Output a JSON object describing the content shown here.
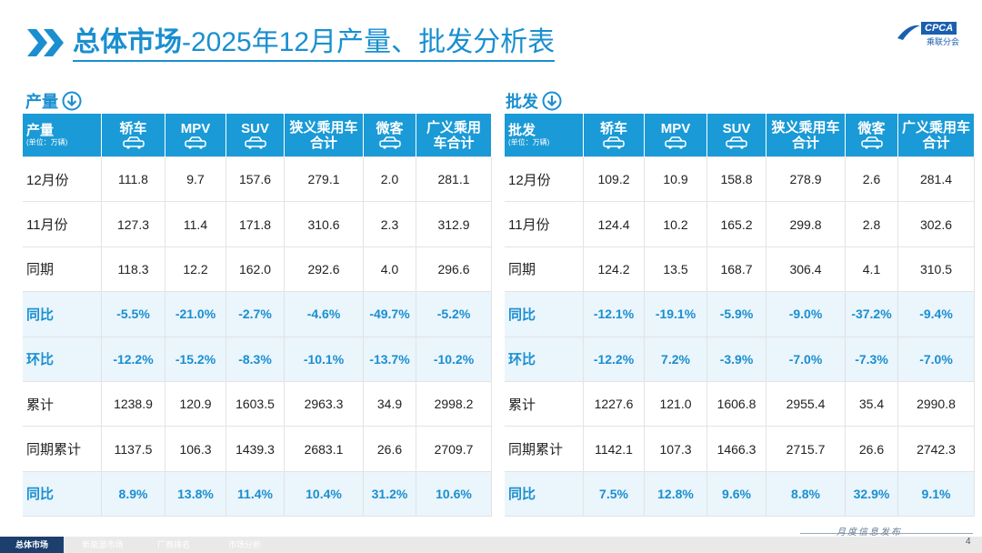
{
  "header": {
    "title_bold": "总体市场",
    "title_rest": "-2025年12月产量、批发分析表",
    "logo": "CPCA",
    "logo_sub": "乘联分会"
  },
  "tables": [
    {
      "section": "产量",
      "corner": "产量",
      "unit": "(单位：万辆)",
      "columns": [
        {
          "label": "轿车",
          "icon": true
        },
        {
          "label": "MPV",
          "icon": true
        },
        {
          "label": "SUV",
          "icon": true
        },
        {
          "label": "狭义乘用车合计",
          "icon": false
        },
        {
          "label": "微客",
          "icon": true
        },
        {
          "label": "广义乘用车合计",
          "icon": false
        }
      ],
      "rows": [
        {
          "label": "12月份",
          "cells": [
            "111.8",
            "9.7",
            "157.6",
            "279.1",
            "2.0",
            "281.1"
          ]
        },
        {
          "label": "11月份",
          "cells": [
            "127.3",
            "11.4",
            "171.8",
            "310.6",
            "2.3",
            "312.9"
          ]
        },
        {
          "label": "同期",
          "cells": [
            "118.3",
            "12.2",
            "162.0",
            "292.6",
            "4.0",
            "296.6"
          ]
        },
        {
          "label": "同比",
          "highlight": true,
          "cells": [
            "-5.5%",
            "-21.0%",
            "-2.7%",
            "-4.6%",
            "-49.7%",
            "-5.2%"
          ]
        },
        {
          "label": "环比",
          "highlight": true,
          "cells": [
            "-12.2%",
            "-15.2%",
            "-8.3%",
            "-10.1%",
            "-13.7%",
            "-10.2%"
          ]
        },
        {
          "label": "累计",
          "cells": [
            "1238.9",
            "120.9",
            "1603.5",
            "2963.3",
            "34.9",
            "2998.2"
          ]
        },
        {
          "label": "同期累计",
          "cells": [
            "1137.5",
            "106.3",
            "1439.3",
            "2683.1",
            "26.6",
            "2709.7"
          ]
        },
        {
          "label": "同比",
          "highlight": true,
          "cells": [
            "8.9%",
            "13.8%",
            "11.4%",
            "10.4%",
            "31.2%",
            "10.6%"
          ]
        }
      ]
    },
    {
      "section": "批发",
      "corner": "批发",
      "unit": "(单位：万辆)",
      "columns": [
        {
          "label": "轿车",
          "icon": true
        },
        {
          "label": "MPV",
          "icon": true
        },
        {
          "label": "SUV",
          "icon": true
        },
        {
          "label": "狭义乘用车合计",
          "icon": false
        },
        {
          "label": "微客",
          "icon": true
        },
        {
          "label": "广义乘用车合计",
          "icon": false
        }
      ],
      "rows": [
        {
          "label": "12月份",
          "cells": [
            "109.2",
            "10.9",
            "158.8",
            "278.9",
            "2.6",
            "281.4"
          ]
        },
        {
          "label": "11月份",
          "cells": [
            "124.4",
            "10.2",
            "165.2",
            "299.8",
            "2.8",
            "302.6"
          ]
        },
        {
          "label": "同期",
          "cells": [
            "124.2",
            "13.5",
            "168.7",
            "306.4",
            "4.1",
            "310.5"
          ]
        },
        {
          "label": "同比",
          "highlight": true,
          "cells": [
            "-12.1%",
            "-19.1%",
            "-5.9%",
            "-9.0%",
            "-37.2%",
            "-9.4%"
          ]
        },
        {
          "label": "环比",
          "highlight": true,
          "cells": [
            "-12.2%",
            "7.2%",
            "-3.9%",
            "-7.0%",
            "-7.3%",
            "-7.0%"
          ]
        },
        {
          "label": "累计",
          "cells": [
            "1227.6",
            "121.0",
            "1606.8",
            "2955.4",
            "35.4",
            "2990.8"
          ]
        },
        {
          "label": "同期累计",
          "cells": [
            "1142.1",
            "107.3",
            "1466.3",
            "2715.7",
            "26.6",
            "2742.3"
          ]
        },
        {
          "label": "同比",
          "highlight": true,
          "cells": [
            "7.5%",
            "12.8%",
            "9.6%",
            "8.8%",
            "32.9%",
            "9.1%"
          ]
        }
      ]
    }
  ],
  "footer": {
    "tabs": [
      "总体市场",
      "新能源市场",
      "厂商排名",
      "市场分析"
    ],
    "note": "月度信息发布",
    "page": "4"
  }
}
